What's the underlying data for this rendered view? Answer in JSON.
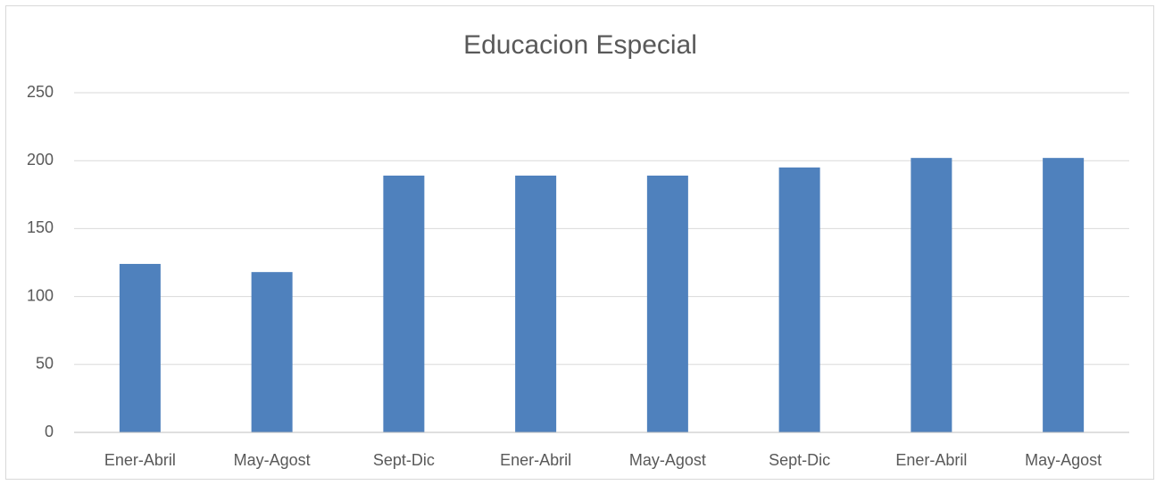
{
  "chart_data": {
    "type": "bar",
    "title": "Educacion Especial",
    "categories": [
      "Ener-Abril",
      "May-Agost",
      "Sept-Dic",
      "Ener-Abril",
      "May-Agost",
      "Sept-Dic",
      "Ener-Abril",
      "May-Agost"
    ],
    "values": [
      124,
      118,
      189,
      189,
      189,
      195,
      202,
      202
    ],
    "color": "#4f81bd",
    "ylim": [
      0,
      250
    ],
    "yticks": [
      0,
      50,
      100,
      150,
      200,
      250
    ],
    "grid": true
  }
}
